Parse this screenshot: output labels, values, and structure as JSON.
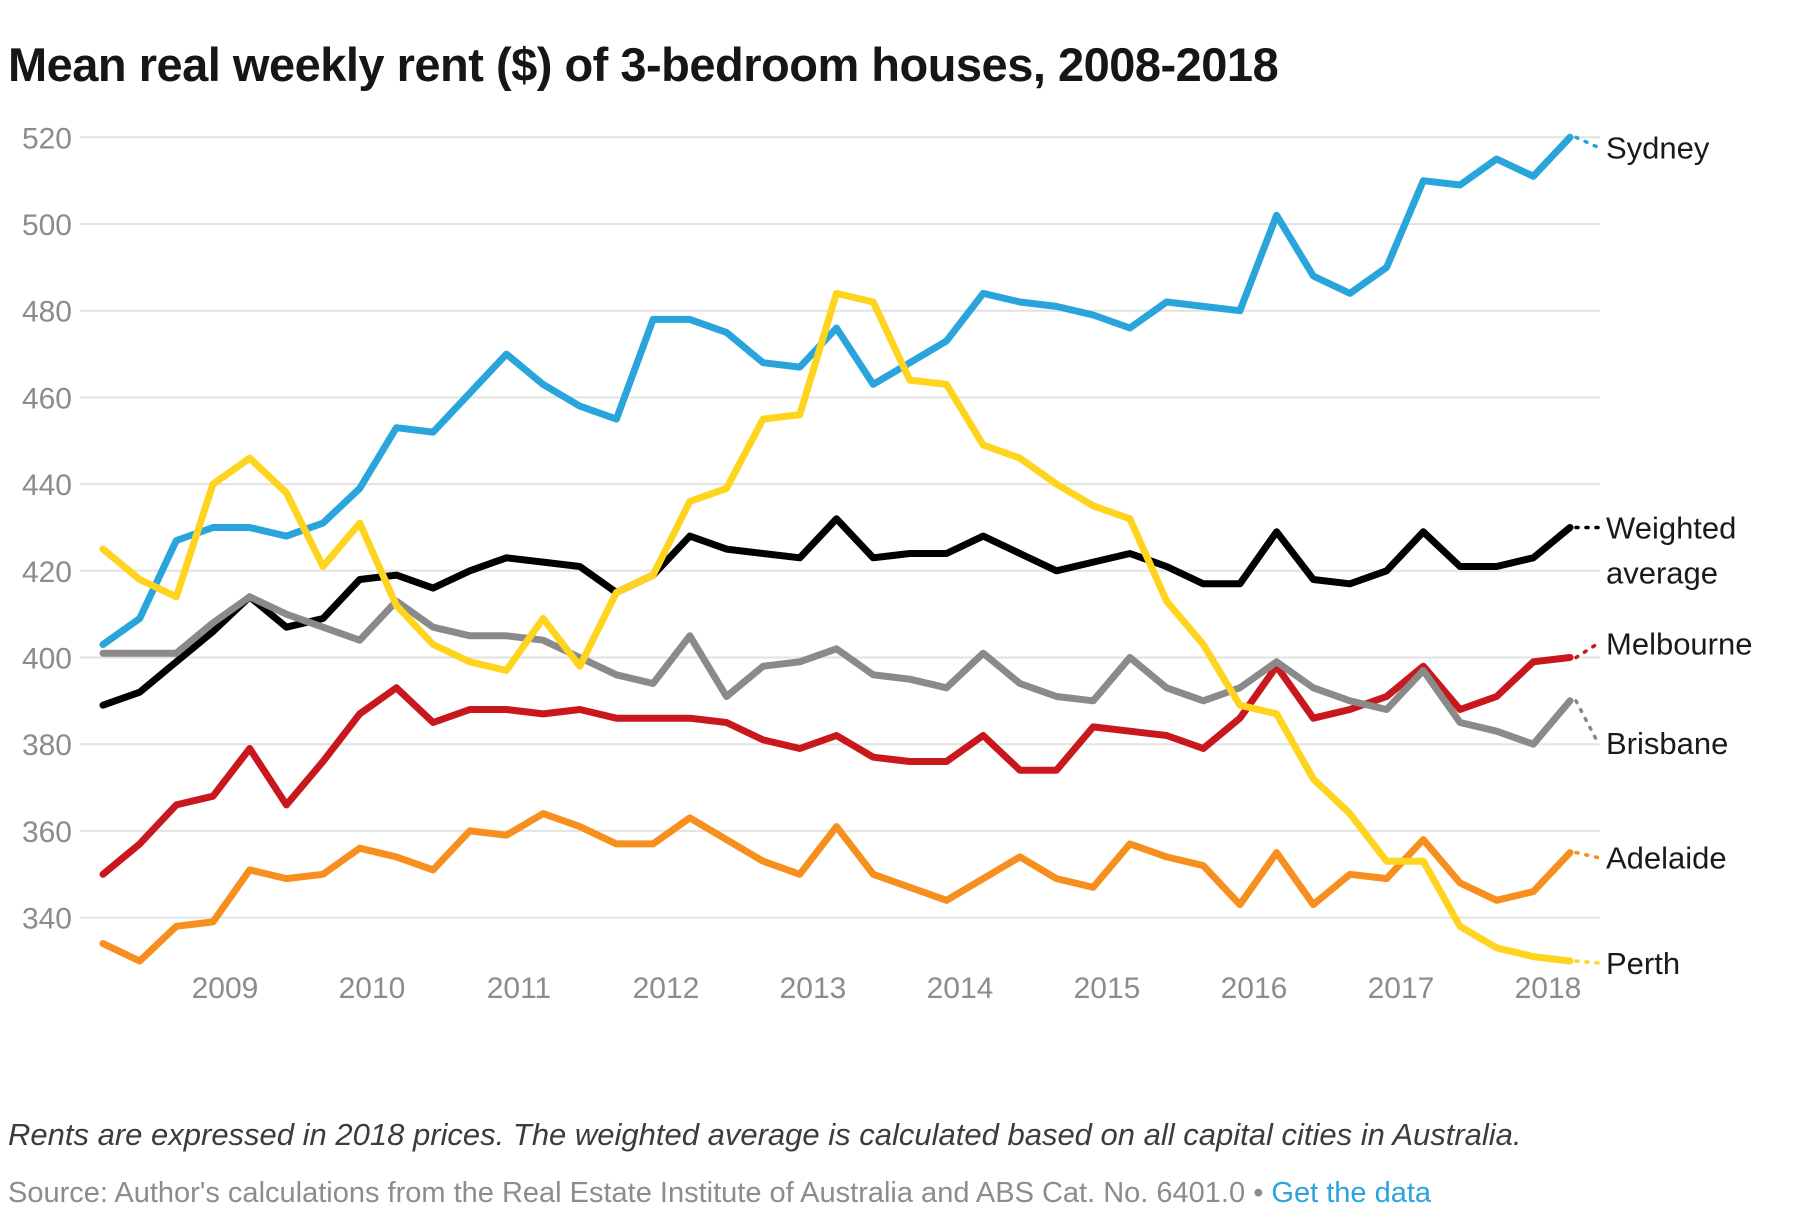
{
  "title": "Mean real weekly rent ($) of 3-bedroom houses, 2008-2018",
  "note": "Rents are expressed in 2018 prices. The weighted average is calculated based on all capital cities in Australia.",
  "source": {
    "prefix": "Source: Author's calculations from the Real Estate Institute of Australia and ABS Cat. No. 6401.0",
    "bullet": "•",
    "link_label": "Get the data",
    "link_color": "#2aa5db"
  },
  "chart_data": {
    "type": "line",
    "title": "Mean real weekly rent ($) of 3-bedroom houses, 2008-2018",
    "x_start": "2008-Q2",
    "x_frequency": "quarterly",
    "x_points": 41,
    "x_tick_labels": [
      "2009",
      "2010",
      "2011",
      "2012",
      "2013",
      "2014",
      "2015",
      "2016",
      "2017",
      "2018"
    ],
    "yticks": [
      520,
      500,
      480,
      460,
      440,
      420,
      400,
      380,
      360,
      340
    ],
    "ylim": [
      325,
      530
    ],
    "grid": true,
    "legend_position": "right-edge-labels",
    "axis_text_color": "#8c8c8c",
    "gridline_color": "#e2e2e2",
    "label_text_color": "#1a1a1a",
    "series": [
      {
        "name": "Sydney",
        "color": "#2aa5db",
        "values": [
          403,
          409,
          427,
          430,
          430,
          428,
          431,
          439,
          453,
          452,
          461,
          470,
          463,
          458,
          455,
          478,
          478,
          475,
          468,
          467,
          476,
          463,
          468,
          473,
          484,
          482,
          481,
          479,
          476,
          482,
          481,
          480,
          502,
          488,
          484,
          490,
          510,
          509,
          515,
          511,
          520
        ]
      },
      {
        "name": "Weighted average",
        "label_lines": [
          "Weighted",
          "average"
        ],
        "color": "#000000",
        "values": [
          389,
          392,
          399,
          406,
          414,
          407,
          409,
          418,
          419,
          416,
          420,
          423,
          422,
          421,
          415,
          419,
          428,
          425,
          424,
          423,
          432,
          423,
          424,
          424,
          428,
          424,
          420,
          422,
          424,
          421,
          417,
          417,
          429,
          418,
          417,
          420,
          429,
          421,
          421,
          423,
          430
        ]
      },
      {
        "name": "Melbourne",
        "color": "#c9171e",
        "values": [
          350,
          357,
          366,
          368,
          379,
          366,
          376,
          387,
          393,
          385,
          388,
          388,
          387,
          388,
          386,
          386,
          386,
          385,
          381,
          379,
          382,
          377,
          376,
          376,
          382,
          374,
          374,
          384,
          383,
          382,
          379,
          386,
          398,
          386,
          388,
          391,
          398,
          388,
          391,
          399,
          400
        ]
      },
      {
        "name": "Brisbane",
        "color": "#8a8a8a",
        "values": [
          401,
          401,
          401,
          408,
          414,
          410,
          407,
          404,
          413,
          407,
          405,
          405,
          404,
          400,
          396,
          394,
          405,
          391,
          398,
          399,
          402,
          396,
          395,
          393,
          401,
          394,
          391,
          390,
          400,
          393,
          390,
          393,
          399,
          393,
          390,
          388,
          397,
          385,
          383,
          380,
          390
        ]
      },
      {
        "name": "Adelaide",
        "color": "#f78f1e",
        "values": [
          334,
          330,
          338,
          339,
          351,
          349,
          350,
          356,
          354,
          351,
          360,
          359,
          364,
          361,
          357,
          357,
          363,
          358,
          353,
          350,
          361,
          350,
          347,
          344,
          349,
          354,
          349,
          347,
          357,
          354,
          352,
          343,
          355,
          343,
          350,
          349,
          358,
          348,
          344,
          346,
          355
        ]
      },
      {
        "name": "Perth",
        "color": "#ffd41e",
        "values": [
          425,
          418,
          414,
          440,
          446,
          438,
          421,
          431,
          412,
          403,
          399,
          397,
          409,
          398,
          415,
          419,
          436,
          439,
          455,
          456,
          484,
          482,
          464,
          463,
          449,
          446,
          440,
          435,
          432,
          413,
          403,
          389,
          387,
          372,
          364,
          353,
          353,
          338,
          333,
          331,
          330
        ]
      }
    ]
  }
}
